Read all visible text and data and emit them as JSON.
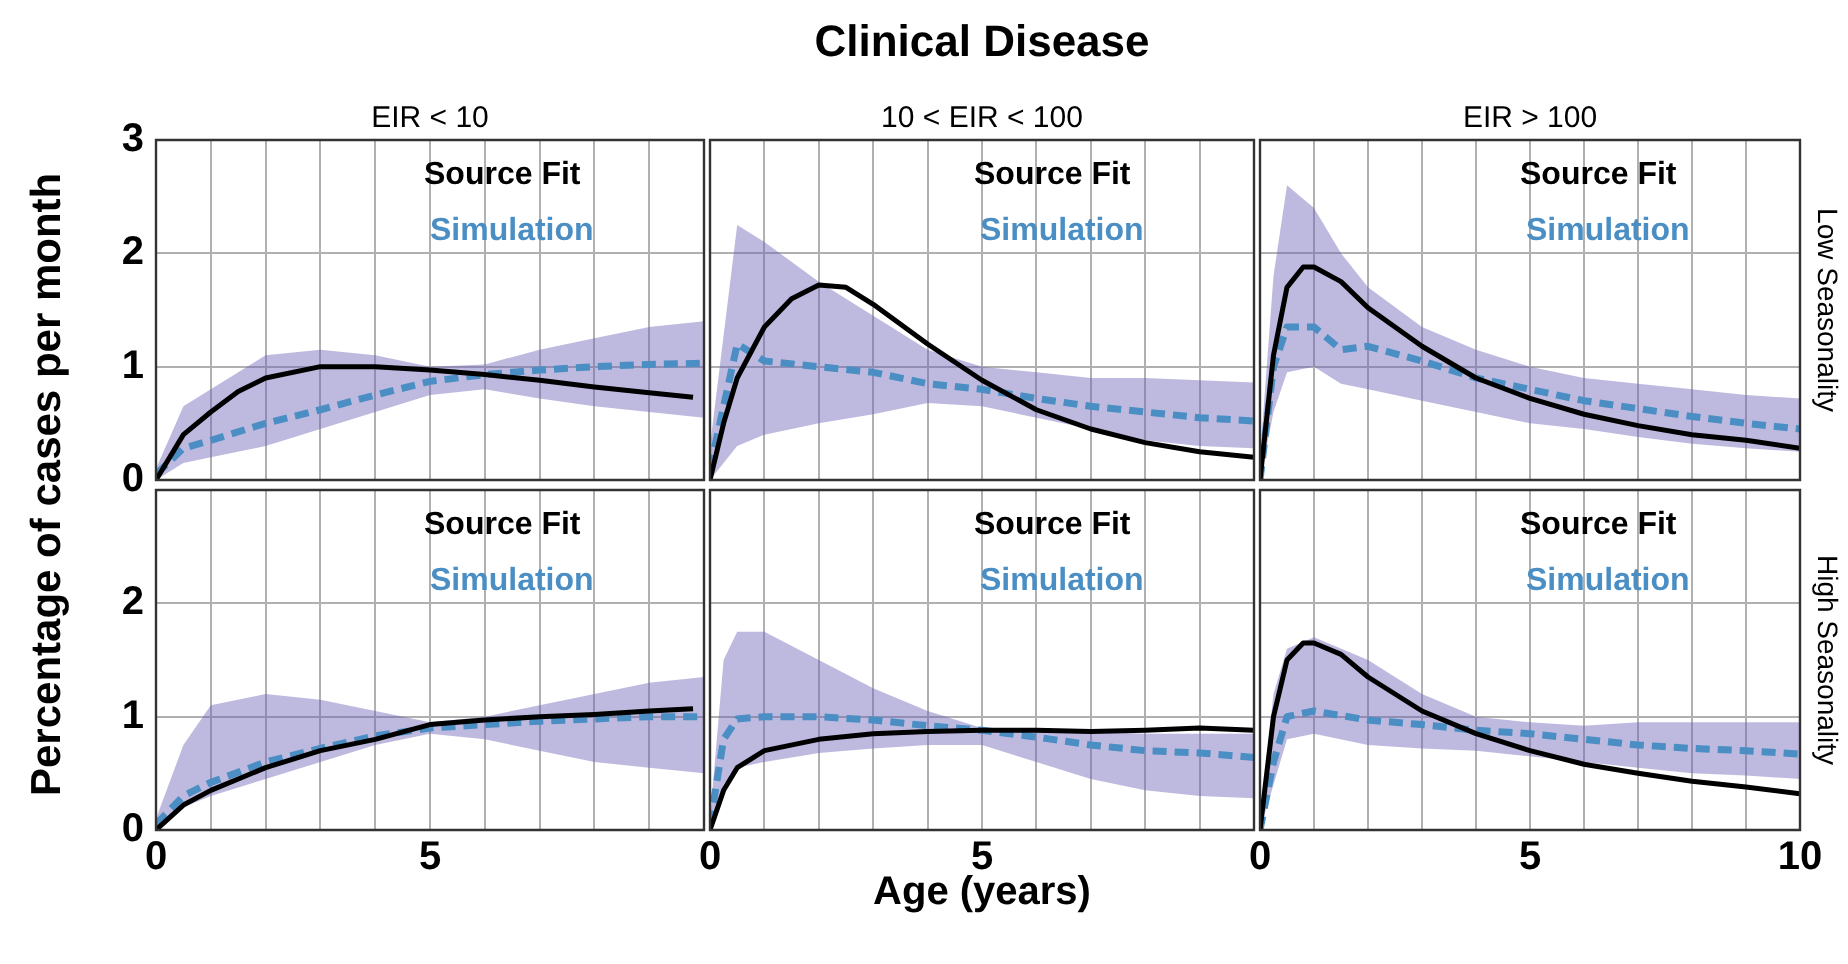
{
  "chart_data": [
    {
      "type": "line",
      "title": "EIR < 10",
      "ylabel": "Percentage of cases per month",
      "xlim": [
        0,
        10
      ],
      "ylim": [
        0,
        3
      ],
      "xticks": [
        0,
        {
          "value": 1,
          "label": null
        },
        {
          "value": 2,
          "label": null
        },
        {
          "value": 3,
          "label": null
        },
        {
          "value": 4,
          "label": null
        },
        5,
        {
          "value": 6,
          "label": null
        },
        {
          "value": 7,
          "label": null
        },
        {
          "value": 8,
          "label": null
        },
        {
          "value": 9,
          "label": null
        },
        10
      ],
      "yticks": [
        0,
        1,
        2,
        3
      ],
      "grid": true,
      "legend": "top right",
      "marker": "none",
      "tick_labels": "y",
      "series": [
        {
          "name": "Source Fit",
          "color": "#000000",
          "x": [
            0,
            0.5,
            1,
            1.5,
            2,
            3,
            4,
            5,
            6,
            7,
            8,
            9,
            9.8
          ],
          "values": [
            0,
            0.4,
            0.6,
            0.78,
            0.9,
            1.0,
            1.0,
            0.97,
            0.93,
            0.88,
            0.82,
            0.77,
            0.73
          ]
        },
        {
          "name": "Simulation",
          "color": "#4a8ec4",
          "line_style": "dashed",
          "x": [
            0,
            0.5,
            1,
            2,
            3,
            4,
            5,
            6,
            7,
            8,
            9,
            10
          ],
          "values": [
            0.05,
            0.28,
            0.35,
            0.5,
            0.62,
            0.75,
            0.87,
            0.93,
            0.97,
            1.0,
            1.02,
            1.03
          ],
          "lower": [
            0,
            0.15,
            0.2,
            0.3,
            0.45,
            0.6,
            0.75,
            0.8,
            0.72,
            0.65,
            0.6,
            0.55
          ],
          "upper": [
            0.1,
            0.65,
            0.8,
            1.1,
            1.15,
            1.1,
            1.0,
            1.02,
            1.15,
            1.25,
            1.35,
            1.4
          ]
        }
      ]
    },
    {
      "type": "line",
      "title": "10 < EIR < 100",
      "annotations": [
        "Clinical Disease"
      ],
      "xlim": [
        0,
        10
      ],
      "ylim": [
        0,
        3
      ],
      "xticks": [
        0,
        {
          "value": 1,
          "label": null
        },
        {
          "value": 2,
          "label": null
        },
        {
          "value": 3,
          "label": null
        },
        {
          "value": 4,
          "label": null
        },
        5,
        {
          "value": 6,
          "label": null
        },
        {
          "value": 7,
          "label": null
        },
        {
          "value": 8,
          "label": null
        },
        {
          "value": 9,
          "label": null
        },
        10
      ],
      "yticks": [
        0,
        1,
        2,
        3
      ],
      "grid": true,
      "legend": "top right",
      "marker": "none",
      "tick_labels": false,
      "series": [
        {
          "name": "Source Fit",
          "color": "#000000",
          "x": [
            0,
            0.25,
            0.5,
            1,
            1.5,
            2,
            2.5,
            3,
            4,
            5,
            6,
            7,
            8,
            9,
            10
          ],
          "values": [
            0,
            0.5,
            0.9,
            1.35,
            1.6,
            1.72,
            1.7,
            1.55,
            1.2,
            0.88,
            0.62,
            0.45,
            0.33,
            0.25,
            0.2
          ]
        },
        {
          "name": "Simulation",
          "color": "#4a8ec4",
          "line_style": "dashed",
          "x": [
            0,
            0.5,
            1,
            2,
            3,
            4,
            5,
            6,
            7,
            8,
            9,
            10
          ],
          "values": [
            0.1,
            1.2,
            1.05,
            1.0,
            0.95,
            0.85,
            0.8,
            0.72,
            0.65,
            0.6,
            0.55,
            0.52
          ],
          "lower": [
            0,
            0.3,
            0.4,
            0.5,
            0.58,
            0.68,
            0.65,
            0.55,
            0.45,
            0.35,
            0.3,
            0.28
          ],
          "upper": [
            0.3,
            2.25,
            2.1,
            1.75,
            1.45,
            1.15,
            1.0,
            0.95,
            0.9,
            0.9,
            0.88,
            0.86
          ]
        }
      ]
    },
    {
      "type": "line",
      "title": "EIR > 100",
      "annotations": [
        "Low Seasonality"
      ],
      "xlim": [
        0,
        10
      ],
      "ylim": [
        0,
        3
      ],
      "xticks": [
        0,
        {
          "value": 1,
          "label": null
        },
        {
          "value": 2,
          "label": null
        },
        {
          "value": 3,
          "label": null
        },
        {
          "value": 4,
          "label": null
        },
        5,
        {
          "value": 6,
          "label": null
        },
        {
          "value": 7,
          "label": null
        },
        {
          "value": 8,
          "label": null
        },
        {
          "value": 9,
          "label": null
        },
        10
      ],
      "yticks": [
        0,
        1,
        2,
        3
      ],
      "grid": true,
      "legend": "top right",
      "marker": "none",
      "tick_labels": false,
      "series": [
        {
          "name": "Source Fit",
          "color": "#000000",
          "x": [
            0,
            0.25,
            0.5,
            0.8,
            1,
            1.5,
            2,
            3,
            4,
            5,
            6,
            7,
            8,
            9,
            10
          ],
          "values": [
            0,
            1.1,
            1.7,
            1.88,
            1.88,
            1.75,
            1.52,
            1.18,
            0.9,
            0.72,
            0.58,
            0.48,
            0.4,
            0.35,
            0.28
          ]
        },
        {
          "name": "Simulation",
          "color": "#4a8ec4",
          "line_style": "dashed",
          "x": [
            0,
            0.25,
            0.5,
            1,
            1.5,
            2,
            3,
            4,
            5,
            6,
            7,
            8,
            9,
            10
          ],
          "values": [
            0,
            1.0,
            1.35,
            1.35,
            1.15,
            1.18,
            1.05,
            0.9,
            0.8,
            0.7,
            0.63,
            0.56,
            0.5,
            0.45
          ],
          "lower": [
            0,
            0.6,
            0.95,
            1.0,
            0.85,
            0.8,
            0.7,
            0.6,
            0.5,
            0.45,
            0.38,
            0.32,
            0.28,
            0.25
          ],
          "upper": [
            0.2,
            1.8,
            2.6,
            2.4,
            2.0,
            1.7,
            1.35,
            1.15,
            1.0,
            0.9,
            0.85,
            0.8,
            0.75,
            0.72
          ]
        }
      ]
    },
    {
      "type": "line",
      "xlim": [
        0,
        10
      ],
      "ylim": [
        0,
        3
      ],
      "xticks": [
        0,
        {
          "value": 1,
          "label": null
        },
        {
          "value": 2,
          "label": null
        },
        {
          "value": 3,
          "label": null
        },
        {
          "value": 4,
          "label": null
        },
        5,
        {
          "value": 6,
          "label": null
        },
        {
          "value": 7,
          "label": null
        },
        {
          "value": 8,
          "label": null
        },
        {
          "value": 9,
          "label": null
        },
        {
          "value": 10,
          "label": null
        }
      ],
      "yticks": [
        0,
        1,
        2,
        {
          "value": 3,
          "label": null
        }
      ],
      "grid": true,
      "legend": "top right",
      "marker": "none",
      "series": [
        {
          "name": "Source Fit",
          "color": "#000000",
          "x": [
            0,
            0.5,
            1,
            2,
            3,
            4,
            5,
            6,
            7,
            8,
            9,
            9.8
          ],
          "values": [
            0,
            0.22,
            0.35,
            0.55,
            0.7,
            0.8,
            0.93,
            0.97,
            1.0,
            1.02,
            1.05,
            1.07
          ]
        },
        {
          "name": "Simulation",
          "color": "#4a8ec4",
          "line_style": "dashed",
          "x": [
            0,
            0.5,
            1,
            2,
            3,
            4,
            5,
            6,
            7,
            8,
            9,
            10
          ],
          "values": [
            0.05,
            0.3,
            0.42,
            0.6,
            0.72,
            0.83,
            0.9,
            0.93,
            0.96,
            0.98,
            1.0,
            1.0
          ],
          "lower": [
            0,
            0.2,
            0.3,
            0.45,
            0.6,
            0.75,
            0.85,
            0.8,
            0.7,
            0.6,
            0.55,
            0.5
          ],
          "upper": [
            0.1,
            0.75,
            1.1,
            1.2,
            1.15,
            1.05,
            0.95,
            1.0,
            1.1,
            1.2,
            1.3,
            1.35
          ]
        }
      ]
    },
    {
      "type": "line",
      "xlabel": "Age (years)",
      "xlim": [
        0,
        10
      ],
      "ylim": [
        0,
        3
      ],
      "xticks": [
        0,
        {
          "value": 1,
          "label": null
        },
        {
          "value": 2,
          "label": null
        },
        {
          "value": 3,
          "label": null
        },
        {
          "value": 4,
          "label": null
        },
        5,
        {
          "value": 6,
          "label": null
        },
        {
          "value": 7,
          "label": null
        },
        {
          "value": 8,
          "label": null
        },
        {
          "value": 9,
          "label": null
        },
        {
          "value": 10,
          "label": null
        }
      ],
      "yticks": [
        0,
        1,
        2,
        3
      ],
      "grid": true,
      "legend": "top right",
      "marker": "none",
      "tick_labels": "x",
      "series": [
        {
          "name": "Source Fit",
          "color": "#000000",
          "x": [
            0,
            0.25,
            0.5,
            1,
            2,
            3,
            4,
            5,
            6,
            7,
            8,
            9,
            10
          ],
          "values": [
            0,
            0.35,
            0.55,
            0.7,
            0.8,
            0.85,
            0.87,
            0.88,
            0.88,
            0.87,
            0.88,
            0.9,
            0.88
          ]
        },
        {
          "name": "Simulation",
          "color": "#4a8ec4",
          "line_style": "dashed",
          "x": [
            0,
            0.25,
            0.5,
            1,
            2,
            3,
            4,
            5,
            6,
            7,
            8,
            9,
            10
          ],
          "values": [
            0.05,
            0.8,
            0.98,
            1.0,
            1.0,
            0.97,
            0.92,
            0.88,
            0.82,
            0.75,
            0.7,
            0.68,
            0.64
          ],
          "lower": [
            0,
            0.4,
            0.55,
            0.6,
            0.68,
            0.72,
            0.75,
            0.75,
            0.6,
            0.45,
            0.35,
            0.3,
            0.28
          ],
          "upper": [
            0.1,
            1.5,
            1.75,
            1.75,
            1.5,
            1.25,
            1.05,
            0.9,
            0.88,
            0.87,
            0.85,
            0.85,
            0.85
          ]
        }
      ]
    },
    {
      "type": "line",
      "annotations": [
        "High Seasonality"
      ],
      "xlim": [
        0,
        10
      ],
      "ylim": [
        0,
        3
      ],
      "xticks": [
        0,
        {
          "value": 1,
          "label": null
        },
        {
          "value": 2,
          "label": null
        },
        {
          "value": 3,
          "label": null
        },
        {
          "value": 4,
          "label": null
        },
        5,
        {
          "value": 6,
          "label": null
        },
        {
          "value": 7,
          "label": null
        },
        {
          "value": 8,
          "label": null
        },
        {
          "value": 9,
          "label": null
        },
        10
      ],
      "yticks": [
        0,
        1,
        2,
        3
      ],
      "grid": true,
      "legend": "top right",
      "marker": "none",
      "tick_labels": "x",
      "series": [
        {
          "name": "Source Fit",
          "color": "#000000",
          "x": [
            0,
            0.25,
            0.5,
            0.8,
            1,
            1.5,
            2,
            3,
            4,
            5,
            6,
            7,
            8,
            9,
            10
          ],
          "values": [
            0,
            1.0,
            1.5,
            1.65,
            1.65,
            1.55,
            1.35,
            1.05,
            0.85,
            0.7,
            0.58,
            0.5,
            0.43,
            0.38,
            0.32
          ]
        },
        {
          "name": "Simulation",
          "color": "#4a8ec4",
          "line_style": "dashed",
          "x": [
            0,
            0.25,
            0.5,
            1,
            2,
            3,
            4,
            5,
            6,
            7,
            8,
            9,
            10
          ],
          "values": [
            0,
            0.6,
            1.0,
            1.05,
            0.97,
            0.93,
            0.88,
            0.85,
            0.8,
            0.75,
            0.72,
            0.7,
            0.67
          ],
          "lower": [
            0,
            0.4,
            0.8,
            0.85,
            0.75,
            0.72,
            0.7,
            0.65,
            0.6,
            0.55,
            0.5,
            0.48,
            0.45
          ],
          "upper": [
            0.1,
            1.2,
            1.6,
            1.7,
            1.5,
            1.2,
            1.0,
            0.95,
            0.92,
            0.95,
            0.95,
            0.95,
            0.95
          ]
        }
      ]
    }
  ]
}
